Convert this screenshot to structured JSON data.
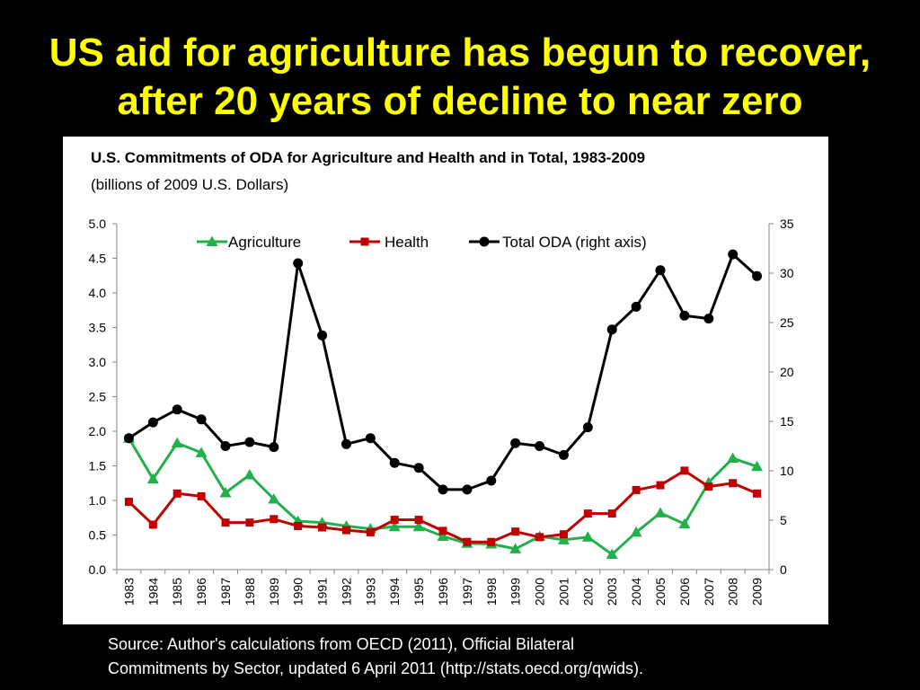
{
  "slide": {
    "title_line1": "US aid for agriculture has begun to recover,",
    "title_line2": "after 20 years of decline to near zero",
    "source_line1": "Source:  Author's calculations from OECD (2011), Official Bilateral",
    "source_line2": "Commitments by Sector, updated 6 April 2011 (http://stats.oecd.org/qwids)."
  },
  "colors": {
    "title": "#FFFF00",
    "background": "#000000",
    "panel": "#FFFFFF",
    "agriculture": "#22B04B",
    "health": "#C00000",
    "total": "#000000"
  },
  "chart_data": {
    "type": "line",
    "title": "U.S. Commitments of ODA for Agriculture and Health and in Total, 1983-2009",
    "subtitle": "(billions of 2009 U.S. Dollars)",
    "xlabel": "",
    "ylabel": "",
    "y2label": "",
    "categories": [
      "1983",
      "1984",
      "1985",
      "1986",
      "1987",
      "1988",
      "1989",
      "1990",
      "1991",
      "1992",
      "1993",
      "1994",
      "1995",
      "1996",
      "1997",
      "1998",
      "1999",
      "2000",
      "2001",
      "2002",
      "2003",
      "2004",
      "2005",
      "2006",
      "2007",
      "2008",
      "2009"
    ],
    "ylim": [
      0,
      5
    ],
    "yticks": [
      "0.0",
      "0.5",
      "1.0",
      "1.5",
      "2.0",
      "2.5",
      "3.0",
      "3.5",
      "4.0",
      "4.5",
      "5.0"
    ],
    "y2lim": [
      0,
      35
    ],
    "y2ticks": [
      "0",
      "5",
      "10",
      "15",
      "20",
      "25",
      "30",
      "35"
    ],
    "grid": false,
    "legend_position": "top",
    "series": [
      {
        "name": "Agriculture",
        "axis": "left",
        "marker": "triangle",
        "color": "#22B04B",
        "values": [
          1.9,
          1.31,
          1.83,
          1.69,
          1.11,
          1.37,
          1.02,
          0.7,
          0.68,
          0.63,
          0.59,
          0.62,
          0.62,
          0.48,
          0.38,
          0.37,
          0.3,
          0.48,
          0.43,
          0.47,
          0.22,
          0.54,
          0.82,
          0.66,
          1.26,
          1.61,
          1.49
        ]
      },
      {
        "name": "Health",
        "axis": "left",
        "marker": "square",
        "color": "#C00000",
        "values": [
          0.98,
          0.65,
          1.1,
          1.06,
          0.68,
          0.68,
          0.73,
          0.63,
          0.61,
          0.57,
          0.54,
          0.72,
          0.72,
          0.56,
          0.4,
          0.4,
          0.55,
          0.47,
          0.51,
          0.81,
          0.81,
          1.15,
          1.22,
          1.43,
          1.2,
          1.25,
          1.1
        ]
      },
      {
        "name": "Total ODA (right axis)",
        "axis": "right",
        "marker": "circle",
        "color": "#000000",
        "values": [
          13.3,
          14.9,
          16.2,
          15.2,
          12.5,
          12.9,
          12.4,
          31.0,
          23.7,
          12.7,
          13.3,
          10.8,
          10.3,
          8.1,
          8.1,
          9.0,
          12.8,
          12.5,
          11.6,
          14.4,
          24.3,
          26.6,
          30.3,
          25.7,
          25.4,
          31.9,
          29.7
        ]
      }
    ]
  }
}
